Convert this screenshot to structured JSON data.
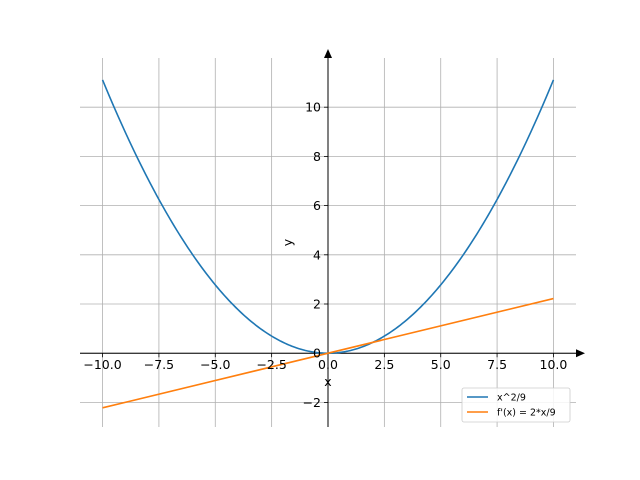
{
  "chart_data": {
    "type": "line",
    "xlabel": "x",
    "ylabel": "y",
    "xlim": [
      -11,
      11
    ],
    "ylim": [
      -3,
      12
    ],
    "grid": true,
    "legend_position": "lower-right",
    "x_ticks": [
      -10.0,
      -7.5,
      -5.0,
      -2.5,
      0.0,
      2.5,
      5.0,
      7.5,
      10.0
    ],
    "x_tick_labels": [
      "−10.0",
      "−7.5",
      "−5.0",
      "−2.5",
      "0.0",
      "2.5",
      "5.0",
      "7.5",
      "10.0"
    ],
    "y_ticks": [
      -2,
      0,
      2,
      4,
      6,
      8,
      10
    ],
    "y_tick_labels": [
      "−2",
      "0",
      "2",
      "4",
      "6",
      "8",
      "10"
    ],
    "series": [
      {
        "name": "x^2/9",
        "color": "#1f77b4",
        "x": [
          -10,
          -9,
          -8,
          -7,
          -6,
          -5,
          -4,
          -3,
          -2,
          -1,
          0,
          1,
          2,
          3,
          4,
          5,
          6,
          7,
          8,
          9,
          10
        ],
        "y": [
          11.11,
          9.0,
          7.11,
          5.44,
          4.0,
          2.78,
          1.78,
          1.0,
          0.44,
          0.11,
          0.0,
          0.11,
          0.44,
          1.0,
          1.78,
          2.78,
          4.0,
          5.44,
          7.11,
          9.0,
          11.11
        ]
      },
      {
        "name": "f'(x) = 2*x/9",
        "color": "#ff7f0e",
        "x": [
          -10,
          10
        ],
        "y": [
          -2.22,
          2.22
        ]
      }
    ]
  }
}
